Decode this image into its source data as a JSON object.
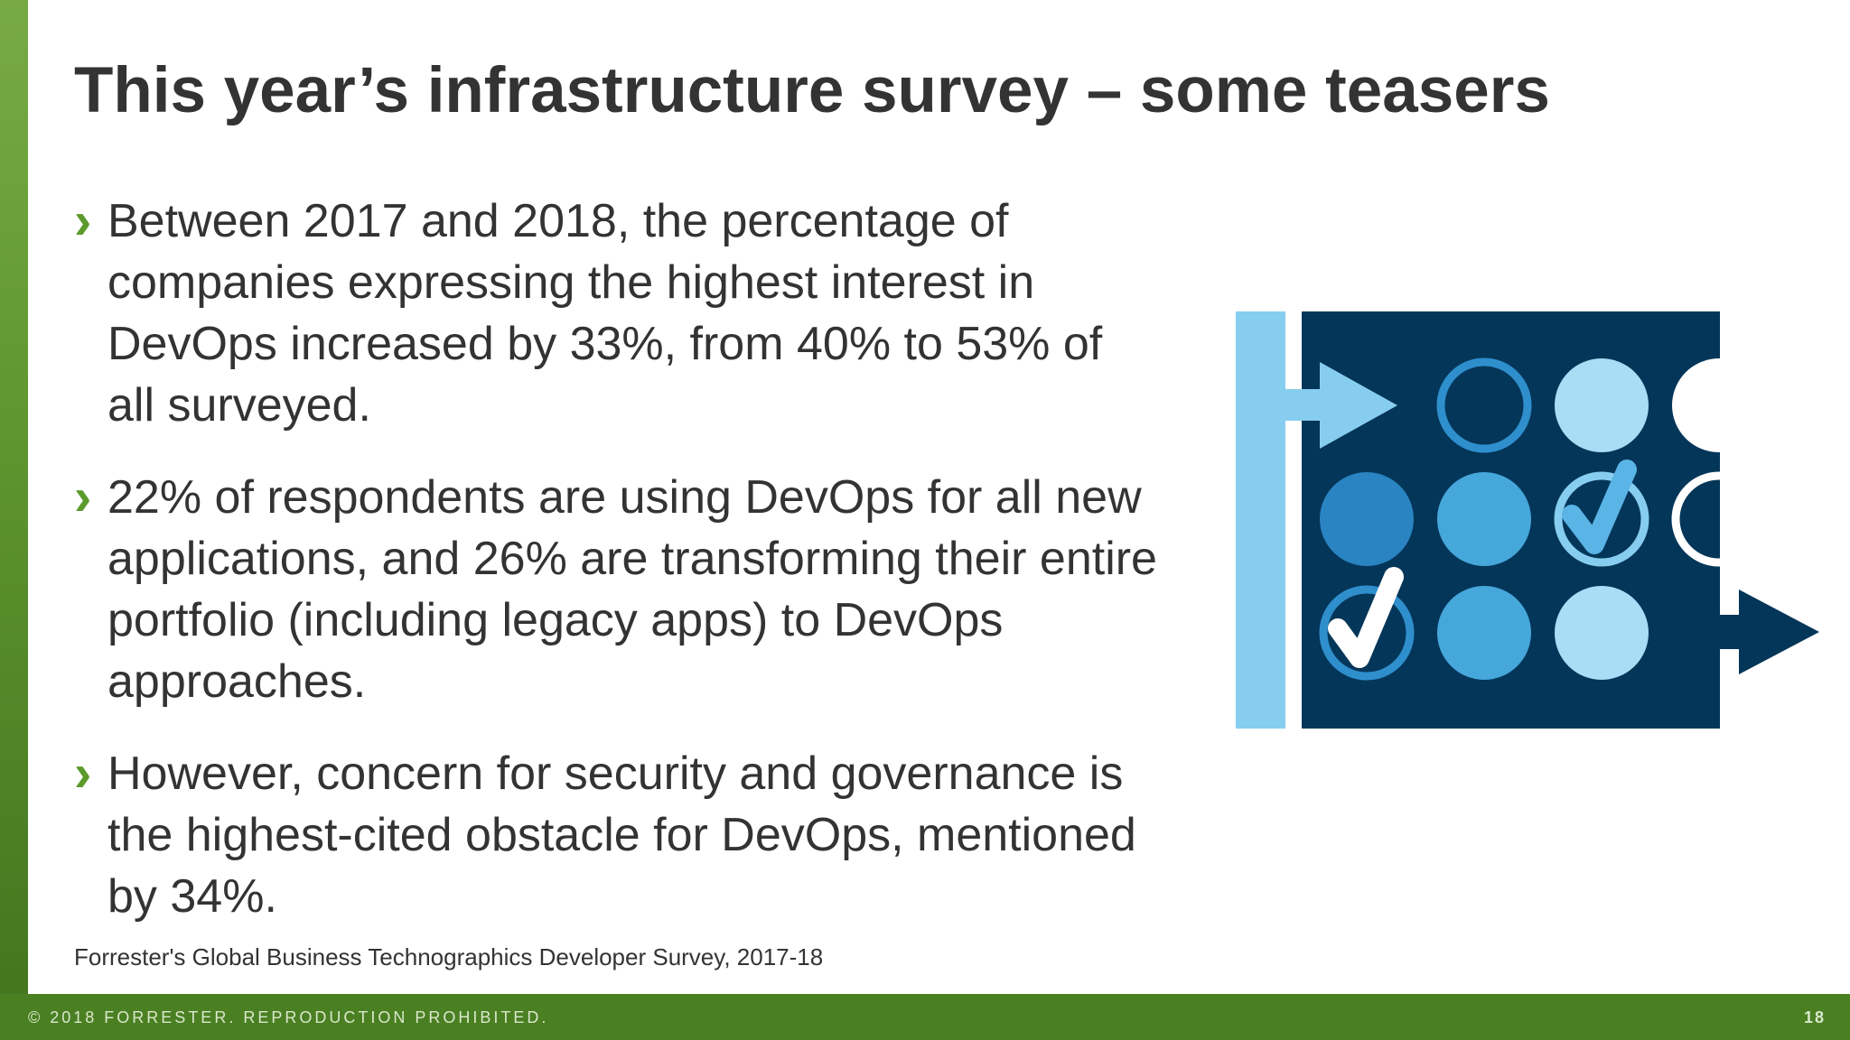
{
  "slide": {
    "title": "This year’s infrastructure survey – some teasers",
    "bullet_marker": "›",
    "bullets": [
      "Between 2017 and 2018, the percentage of companies expressing the highest interest in DevOps increased by 33%, from 40% to 53% of all surveyed.",
      "22% of respondents are using DevOps for all new applications, and 26% are transforming their entire portfolio (including legacy apps) to DevOps approaches.",
      "However, concern for security and governance is the highest-cited obstacle for DevOps, mentioned by 34%."
    ],
    "source": "Forrester's Global Business Technographics Developer Survey, 2017-18"
  },
  "footer": {
    "copyright": "© 2018 FORRESTER. REPRODUCTION PROHIBITED.",
    "page_number": "18"
  },
  "illustration": {
    "icon": "devops-process-grid-icon",
    "colors": {
      "navy": "#043659",
      "light_blue": "#87cdef",
      "pale_blue": "#a9ddf6",
      "medium_blue": "#2a84c2",
      "mid_blue": "#46a7db",
      "white": "#ffffff"
    }
  },
  "theme": {
    "accent_green": "#5c9a2c",
    "footer_green": "#4a7f22",
    "text_dark": "#333333"
  }
}
